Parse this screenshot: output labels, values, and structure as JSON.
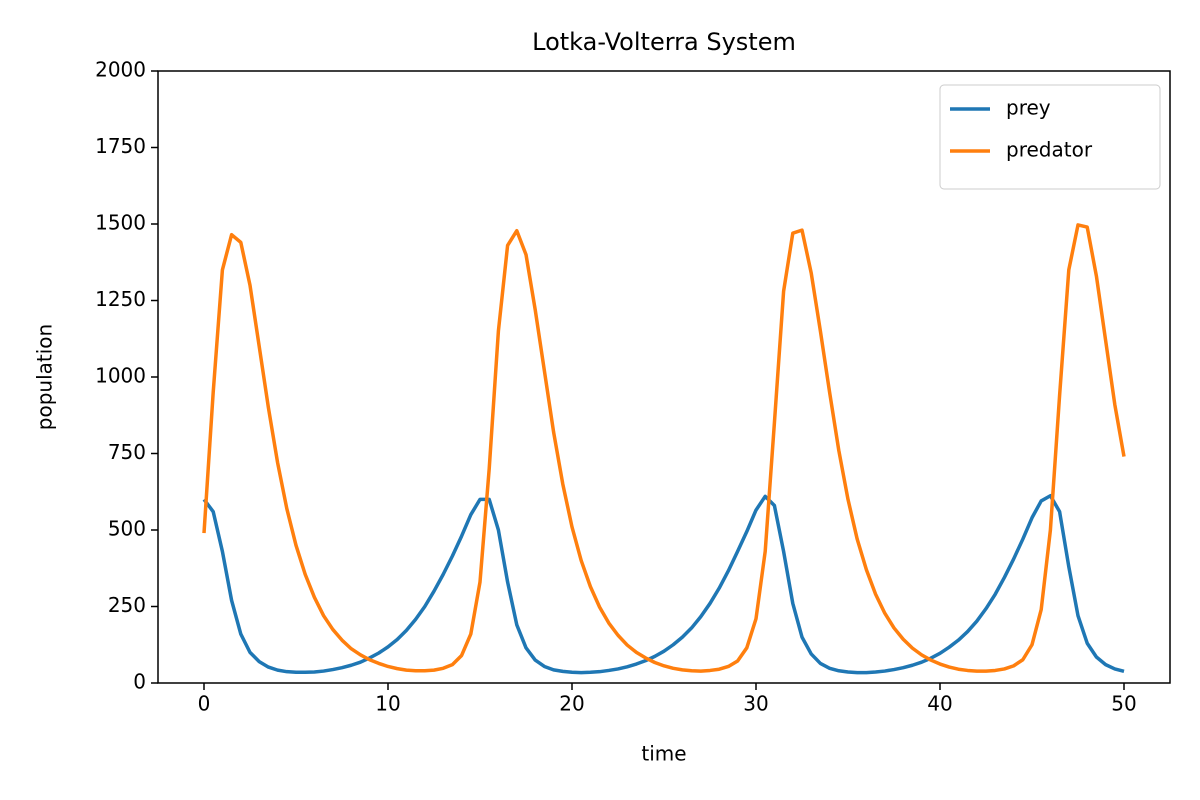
{
  "chart_data": {
    "type": "line",
    "title": "Lotka-Volterra System",
    "x_label": "time",
    "y_label": "population",
    "x": [
      0,
      0.5,
      1,
      1.5,
      2,
      2.5,
      3,
      3.5,
      4,
      4.5,
      5,
      5.5,
      6,
      6.5,
      7,
      7.5,
      8,
      8.5,
      9,
      9.5,
      10,
      10.5,
      11,
      11.5,
      12,
      12.5,
      13,
      13.5,
      14,
      14.5,
      15,
      15.5,
      16,
      16.5,
      17,
      17.5,
      18,
      18.5,
      19,
      19.5,
      20,
      20.5,
      21,
      21.5,
      22,
      22.5,
      23,
      23.5,
      24,
      24.5,
      25,
      25.5,
      26,
      26.5,
      27,
      27.5,
      28,
      28.5,
      29,
      29.5,
      30,
      30.5,
      31,
      31.5,
      32,
      32.5,
      33,
      33.5,
      34,
      34.5,
      35,
      35.5,
      36,
      36.5,
      37,
      37.5,
      38,
      38.5,
      39,
      39.5,
      40,
      40.5,
      41,
      41.5,
      42,
      42.5,
      43,
      43.5,
      44,
      44.5,
      45,
      45.5,
      46,
      46.5,
      47,
      47.5,
      48,
      48.5,
      49,
      49.5,
      50
    ],
    "series": [
      {
        "name": "prey",
        "color": "#1f77b4",
        "values": [
          600,
          560,
          430,
          270,
          160,
          100,
          70,
          52,
          42,
          37,
          35,
          35,
          36,
          39,
          44,
          50,
          58,
          68,
          82,
          98,
          118,
          142,
          172,
          208,
          250,
          300,
          355,
          415,
          480,
          550,
          600,
          600,
          500,
          330,
          190,
          115,
          75,
          54,
          43,
          38,
          35,
          34,
          35,
          37,
          41,
          46,
          53,
          62,
          73,
          87,
          104,
          125,
          150,
          180,
          217,
          260,
          310,
          367,
          430,
          495,
          565,
          610,
          580,
          430,
          260,
          150,
          95,
          64,
          48,
          40,
          36,
          34,
          34,
          36,
          39,
          44,
          50,
          58,
          68,
          81,
          97,
          117,
          140,
          168,
          202,
          243,
          290,
          345,
          405,
          470,
          540,
          595,
          612,
          560,
          380,
          220,
          130,
          85,
          60,
          46,
          38
        ]
      },
      {
        "name": "predator",
        "color": "#ff7f0e",
        "values": [
          490,
          950,
          1350,
          1465,
          1440,
          1300,
          1100,
          900,
          720,
          570,
          450,
          355,
          280,
          220,
          175,
          140,
          112,
          92,
          76,
          64,
          54,
          47,
          42,
          40,
          40,
          42,
          48,
          60,
          90,
          160,
          330,
          700,
          1150,
          1430,
          1478,
          1400,
          1220,
          1020,
          820,
          650,
          510,
          400,
          315,
          248,
          196,
          156,
          124,
          100,
          82,
          67,
          56,
          48,
          43,
          40,
          39,
          41,
          45,
          54,
          72,
          115,
          210,
          430,
          850,
          1280,
          1470,
          1480,
          1340,
          1150,
          950,
          760,
          600,
          470,
          370,
          290,
          228,
          180,
          143,
          114,
          92,
          75,
          62,
          52,
          45,
          41,
          39,
          39,
          41,
          46,
          56,
          76,
          125,
          240,
          500,
          940,
          1350,
          1497,
          1490,
          1330,
          1120,
          910,
          740
        ]
      }
    ],
    "xlim": [
      -2.5,
      52.5
    ],
    "ylim": [
      0,
      2000
    ],
    "xticks": [
      0,
      10,
      20,
      30,
      40,
      50
    ],
    "yticks": [
      0,
      250,
      500,
      750,
      1000,
      1250,
      1500,
      1750,
      2000
    ],
    "legend": "upper right"
  }
}
